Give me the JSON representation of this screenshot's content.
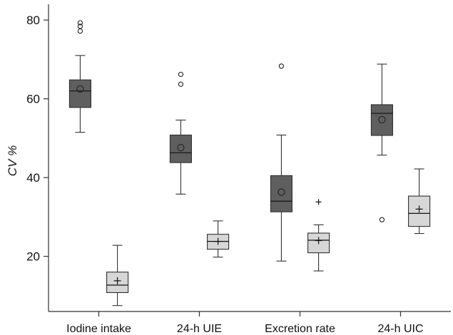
{
  "chart_data": {
    "type": "boxplot",
    "title": "",
    "xlabel": "",
    "ylabel": "CV %",
    "ylim": [
      6,
      84
    ],
    "yticks": [
      20,
      40,
      60,
      80
    ],
    "grid": false,
    "legend": "none",
    "categories": [
      "Iodine intake",
      "24-h UIE",
      "Excretion rate",
      "24-h UIC"
    ],
    "series": [
      {
        "color": "#5f5f5f",
        "mean_marker": "circle",
        "boxes": [
          {
            "min": 51.5,
            "q1": 57.8,
            "median": 62.0,
            "q3": 64.8,
            "max": 71.0,
            "mean": 62.5,
            "outliers": [
              77.2,
              78.4,
              79.3
            ]
          },
          {
            "min": 35.8,
            "q1": 43.8,
            "median": 46.3,
            "q3": 50.8,
            "max": 54.6,
            "mean": 47.6,
            "outliers": [
              63.7,
              66.2
            ]
          },
          {
            "min": 18.8,
            "q1": 31.3,
            "median": 34.0,
            "q3": 40.5,
            "max": 50.8,
            "mean": 36.3,
            "outliers": [
              68.3
            ]
          },
          {
            "min": 45.7,
            "q1": 50.7,
            "median": 56.3,
            "q3": 58.5,
            "max": 68.8,
            "mean": 54.7,
            "outliers": [
              29.3
            ]
          }
        ]
      },
      {
        "color": "#d7d7d7",
        "mean_marker": "plus",
        "boxes": [
          {
            "min": 7.5,
            "q1": 10.8,
            "median": 12.7,
            "q3": 16.0,
            "max": 22.8,
            "mean": 13.8,
            "outliers": []
          },
          {
            "min": 19.8,
            "q1": 21.8,
            "median": 23.8,
            "q3": 25.6,
            "max": 29.0,
            "mean": 23.8,
            "outliers": []
          },
          {
            "min": 16.3,
            "q1": 20.9,
            "median": 24.1,
            "q3": 25.9,
            "max": 28.0,
            "mean": 24.0,
            "outliers": [
              33.8
            ]
          },
          {
            "min": 25.8,
            "q1": 27.6,
            "median": 30.9,
            "q3": 35.3,
            "max": 42.2,
            "mean": 32.0,
            "outliers": []
          }
        ]
      }
    ]
  }
}
